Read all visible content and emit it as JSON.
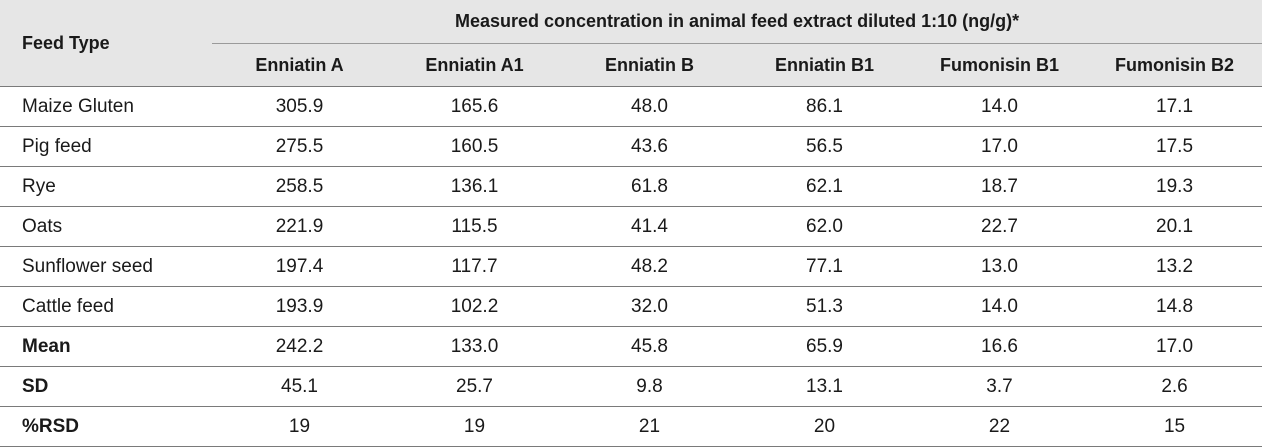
{
  "table": {
    "feed_type_header": "Feed Type",
    "group_header": "Measured concentration in animal feed extract diluted 1:10 (ng/g)*",
    "columns": [
      "Enniatin A",
      "Enniatin A1",
      "Enniatin B",
      "Enniatin B1",
      "Fumonisin B1",
      "Fumonisin B2"
    ],
    "rows": [
      {
        "label": "Maize Gluten",
        "values": [
          "305.9",
          "165.6",
          "48.0",
          "86.1",
          "14.0",
          "17.1"
        ],
        "bold": false
      },
      {
        "label": "Pig feed",
        "values": [
          "275.5",
          "160.5",
          "43.6",
          "56.5",
          "17.0",
          "17.5"
        ],
        "bold": false
      },
      {
        "label": "Rye",
        "values": [
          "258.5",
          "136.1",
          "61.8",
          "62.1",
          "18.7",
          "19.3"
        ],
        "bold": false
      },
      {
        "label": "Oats",
        "values": [
          "221.9",
          "115.5",
          "41.4",
          "62.0",
          "22.7",
          "20.1"
        ],
        "bold": false
      },
      {
        "label": "Sunflower seed",
        "values": [
          "197.4",
          "117.7",
          "48.2",
          "77.1",
          "13.0",
          "13.2"
        ],
        "bold": false
      },
      {
        "label": "Cattle feed",
        "values": [
          "193.9",
          "102.2",
          "32.0",
          "51.3",
          "14.0",
          "14.8"
        ],
        "bold": false
      },
      {
        "label": "Mean",
        "values": [
          "242.2",
          "133.0",
          "45.8",
          "65.9",
          "16.6",
          "17.0"
        ],
        "bold": true
      },
      {
        "label": "SD",
        "values": [
          "45.1",
          "25.7",
          "9.8",
          "13.1",
          "3.7",
          "2.6"
        ],
        "bold": true
      },
      {
        "label": "%RSD",
        "values": [
          "19",
          "19",
          "21",
          "20",
          "22",
          "15"
        ],
        "bold": true
      }
    ]
  },
  "colors": {
    "header_bg": "#e6e6e6",
    "rule": "#7a7a7a"
  }
}
